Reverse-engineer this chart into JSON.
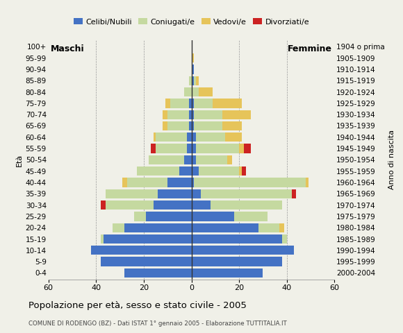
{
  "age_groups": [
    "0-4",
    "5-9",
    "10-14",
    "15-19",
    "20-24",
    "25-29",
    "30-34",
    "35-39",
    "40-44",
    "45-49",
    "50-54",
    "55-59",
    "60-64",
    "65-69",
    "70-74",
    "75-79",
    "80-84",
    "85-89",
    "90-94",
    "95-99",
    "100+"
  ],
  "birth_years": [
    "2000-2004",
    "1995-1999",
    "1990-1994",
    "1985-1989",
    "1980-1984",
    "1975-1979",
    "1970-1974",
    "1965-1969",
    "1960-1964",
    "1955-1959",
    "1950-1954",
    "1945-1949",
    "1940-1944",
    "1935-1939",
    "1930-1934",
    "1925-1929",
    "1920-1924",
    "1915-1919",
    "1910-1914",
    "1905-1909",
    "1904 o prima"
  ],
  "males": {
    "celibe": [
      28,
      38,
      42,
      37,
      28,
      19,
      16,
      14,
      10,
      5,
      3,
      2,
      2,
      1,
      1,
      1,
      0,
      0,
      0,
      0,
      0
    ],
    "coniugato": [
      0,
      0,
      0,
      1,
      5,
      5,
      20,
      22,
      17,
      18,
      15,
      13,
      13,
      9,
      9,
      8,
      3,
      1,
      0,
      0,
      0
    ],
    "vedovo": [
      0,
      0,
      0,
      0,
      0,
      0,
      0,
      0,
      2,
      0,
      0,
      0,
      1,
      2,
      2,
      2,
      0,
      0,
      0,
      0,
      0
    ],
    "divorziato": [
      0,
      0,
      0,
      0,
      0,
      0,
      2,
      0,
      0,
      0,
      0,
      2,
      0,
      0,
      0,
      0,
      0,
      0,
      0,
      0,
      0
    ]
  },
  "females": {
    "nubile": [
      30,
      38,
      43,
      38,
      28,
      18,
      8,
      4,
      1,
      3,
      2,
      2,
      2,
      1,
      1,
      1,
      0,
      1,
      1,
      0,
      0
    ],
    "coniugata": [
      0,
      0,
      0,
      2,
      9,
      14,
      30,
      38,
      47,
      17,
      13,
      18,
      12,
      12,
      12,
      8,
      3,
      1,
      0,
      0,
      0
    ],
    "vedova": [
      0,
      0,
      0,
      0,
      2,
      0,
      0,
      0,
      1,
      1,
      2,
      2,
      7,
      8,
      12,
      12,
      6,
      1,
      0,
      1,
      0
    ],
    "divorziata": [
      0,
      0,
      0,
      0,
      0,
      0,
      0,
      2,
      0,
      2,
      0,
      3,
      0,
      0,
      0,
      0,
      0,
      0,
      0,
      0,
      0
    ]
  },
  "colors": {
    "celibe": "#4472c4",
    "coniugato": "#c5d9a0",
    "vedovo": "#e6c45a",
    "divorziato": "#cc2222"
  },
  "xlim": 60,
  "title": "Popolazione per età, sesso e stato civile - 2005",
  "subtitle": "COMUNE DI RODENGO (BZ) - Dati ISTAT 1° gennaio 2005 - Elaborazione TUTTITALIA.IT",
  "legend_labels": [
    "Celibi/Nubili",
    "Coniugati/e",
    "Vedovi/e",
    "Divorziati/e"
  ],
  "bg_color": "#f0f0e8"
}
